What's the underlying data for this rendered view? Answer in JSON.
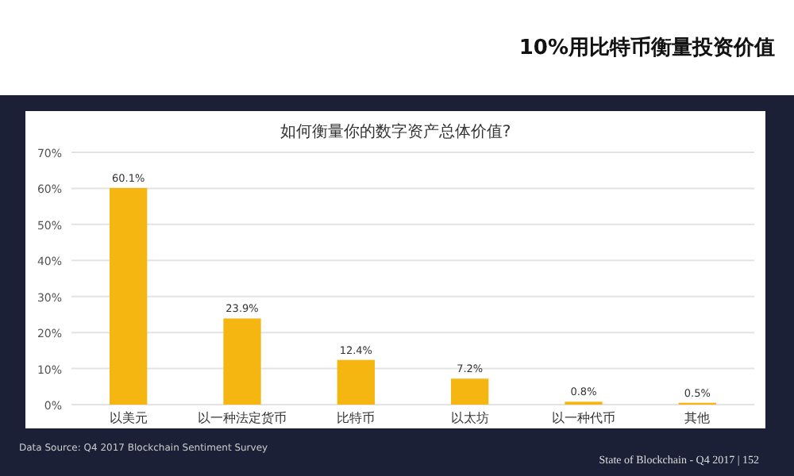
{
  "chart_data": {
    "type": "bar",
    "title": "如何衡量你的数字资产总体价值?",
    "categories": [
      "以美元",
      "以一种法定货币",
      "比特币",
      "以太坊",
      "以一种代币",
      "其他"
    ],
    "values": [
      60.1,
      23.9,
      12.4,
      7.2,
      0.8,
      0.5
    ],
    "value_labels": [
      "60.1%",
      "23.9%",
      "12.4%",
      "7.2%",
      "0.8%",
      "0.5%"
    ],
    "color": "#f5b611",
    "ylim": [
      0,
      70
    ],
    "yticks": [
      {
        "value": 0,
        "label": "0%"
      },
      {
        "value": 10,
        "label": "10%"
      },
      {
        "value": 20,
        "label": "20%"
      },
      {
        "value": 30,
        "label": "30%"
      },
      {
        "value": 40,
        "label": "40%"
      },
      {
        "value": 50,
        "label": "50%"
      },
      {
        "value": 60,
        "label": "60%"
      },
      {
        "value": 70,
        "label": "70%"
      }
    ],
    "grid": "y",
    "annotations": [
      "10%用比特币衡量投资价值",
      "Data Source: Q4 2017 Blockchain Sentiment Survey",
      "State of Blockchain - Q4 2017 | 152"
    ]
  }
}
